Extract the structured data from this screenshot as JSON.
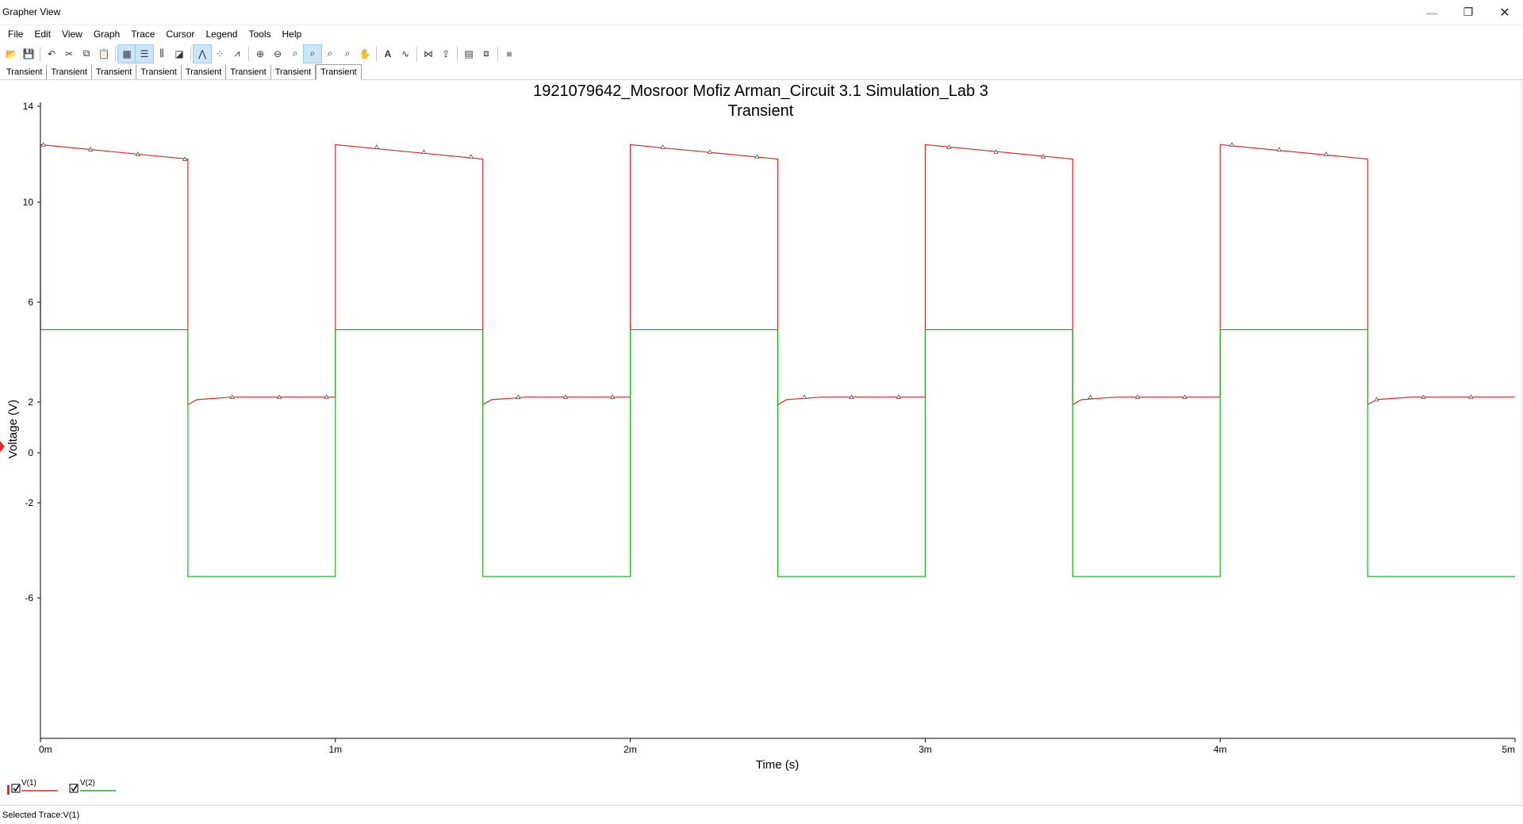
{
  "window": {
    "title": "Grapher View",
    "minimize_glyph": "—",
    "restore_glyph": "❐",
    "close_glyph": "✕"
  },
  "menu": [
    "File",
    "Edit",
    "View",
    "Graph",
    "Trace",
    "Cursor",
    "Legend",
    "Tools",
    "Help"
  ],
  "toolbar": {
    "icons": [
      "open-icon",
      "save-icon",
      "|",
      "undo-icon",
      "cut-icon",
      "copy-icon",
      "paste-icon",
      "|",
      "grid-icon",
      "legend-icon",
      "cursors-icon",
      "reverse-colors-icon",
      "|",
      "show-trace-icon",
      "show-points-icon",
      "show-lines-points-icon",
      "|",
      "zoom-in-icon",
      "zoom-out-icon",
      "zoom-area-icon",
      "zoom-x-icon",
      "zoom-y-icon",
      "zoom-full-icon",
      "pan-icon",
      "|",
      "text-icon",
      "compare-icon",
      "|",
      "diff-icon",
      "export-icon",
      "|",
      "properties-icon",
      "overlay-icon",
      "|",
      "stop-icon"
    ],
    "active": [
      "grid-icon",
      "legend-icon",
      "show-trace-icon",
      "zoom-x-icon"
    ]
  },
  "tabs": [
    {
      "label": "Transient",
      "active": false
    },
    {
      "label": "Transient",
      "active": false
    },
    {
      "label": "Transient",
      "active": false
    },
    {
      "label": "Transient",
      "active": false
    },
    {
      "label": "Transient",
      "active": false
    },
    {
      "label": "Transient",
      "active": false
    },
    {
      "label": "Transient",
      "active": false
    },
    {
      "label": "Transient",
      "active": true
    }
  ],
  "colors": {
    "v1": "#e8262b",
    "v2": "#1ab526"
  },
  "status": {
    "text": "Selected Trace:V(1)"
  },
  "chart_data": {
    "type": "line",
    "title": "1921079642_Mosroor Mofiz Arman_Circuit 3.1 Simulation_Lab 3",
    "subtitle": "Transient",
    "xlabel": "Time (s)",
    "ylabel": "Voltage (V)",
    "xlim": [
      0,
      0.005
    ],
    "ylim": [
      -6,
      14
    ],
    "x_ticks": [
      {
        "value": 0,
        "label": "0m"
      },
      {
        "value": 0.001,
        "label": "1m"
      },
      {
        "value": 0.002,
        "label": "2m"
      },
      {
        "value": 0.003,
        "label": "3m"
      },
      {
        "value": 0.004,
        "label": "4m"
      },
      {
        "value": 0.005,
        "label": "5m"
      }
    ],
    "y_ticks": [
      {
        "value": 14,
        "label": "14"
      },
      {
        "value": 10,
        "label": "10"
      },
      {
        "value": 6,
        "label": "6"
      },
      {
        "value": 2,
        "label": "2"
      },
      {
        "value": 0,
        "label": "0"
      },
      {
        "value": -2,
        "label": "-2"
      },
      {
        "value": -6,
        "label": "-6"
      }
    ],
    "legend": "bottom-left",
    "series": [
      {
        "name": "V(1)",
        "color": "#e8262b",
        "checked": true,
        "points": [
          [
            0,
            4.9
          ],
          [
            0,
            12.4
          ],
          [
            0.0005,
            11.8
          ],
          [
            0.0005,
            1.9
          ],
          [
            0.00053,
            2.1
          ],
          [
            0.00065,
            2.2
          ],
          [
            0.001,
            2.2
          ],
          [
            0.001,
            12.4
          ],
          [
            0.0015,
            11.8
          ],
          [
            0.0015,
            1.9
          ],
          [
            0.00153,
            2.1
          ],
          [
            0.00165,
            2.2
          ],
          [
            0.002,
            2.2
          ],
          [
            0.002,
            12.4
          ],
          [
            0.0025,
            11.8
          ],
          [
            0.0025,
            1.9
          ],
          [
            0.00253,
            2.1
          ],
          [
            0.00265,
            2.2
          ],
          [
            0.003,
            2.2
          ],
          [
            0.003,
            12.4
          ],
          [
            0.0035,
            11.8
          ],
          [
            0.0035,
            1.9
          ],
          [
            0.00353,
            2.1
          ],
          [
            0.00365,
            2.2
          ],
          [
            0.004,
            2.2
          ],
          [
            0.004,
            12.4
          ],
          [
            0.0045,
            11.8
          ],
          [
            0.0045,
            1.9
          ],
          [
            0.00453,
            2.1
          ],
          [
            0.00465,
            2.2
          ],
          [
            0.005,
            2.2
          ]
        ],
        "markers": [
          [
            1e-05,
            12.4
          ],
          [
            0.00017,
            12.2
          ],
          [
            0.00033,
            12.0
          ],
          [
            0.00049,
            11.8
          ],
          [
            0.00065,
            2.2
          ],
          [
            0.00081,
            2.2
          ],
          [
            0.00097,
            2.2
          ],
          [
            0.00114,
            12.3
          ],
          [
            0.0013,
            12.1
          ],
          [
            0.00146,
            11.9
          ],
          [
            0.00162,
            2.2
          ],
          [
            0.00178,
            2.2
          ],
          [
            0.00194,
            2.2
          ],
          [
            0.00211,
            12.3
          ],
          [
            0.00227,
            12.1
          ],
          [
            0.00243,
            11.9
          ],
          [
            0.00259,
            2.2
          ],
          [
            0.00275,
            2.2
          ],
          [
            0.00291,
            2.2
          ],
          [
            0.00308,
            12.3
          ],
          [
            0.00324,
            12.1
          ],
          [
            0.0034,
            11.9
          ],
          [
            0.00356,
            2.2
          ],
          [
            0.00372,
            2.2
          ],
          [
            0.00388,
            2.2
          ],
          [
            0.00404,
            12.4
          ],
          [
            0.0042,
            12.2
          ],
          [
            0.00436,
            12.0
          ],
          [
            0.00453,
            2.1
          ],
          [
            0.00469,
            2.2
          ],
          [
            0.00485,
            2.2
          ]
        ]
      },
      {
        "name": "V(2)",
        "color": "#1ab526",
        "checked": true,
        "points": [
          [
            0,
            4.9
          ],
          [
            0.0005,
            4.9
          ],
          [
            0.0005,
            -5.1
          ],
          [
            0.001,
            -5.1
          ],
          [
            0.001,
            4.9
          ],
          [
            0.0015,
            4.9
          ],
          [
            0.0015,
            -5.1
          ],
          [
            0.002,
            -5.1
          ],
          [
            0.002,
            4.9
          ],
          [
            0.0025,
            4.9
          ],
          [
            0.0025,
            -5.1
          ],
          [
            0.003,
            -5.1
          ],
          [
            0.003,
            4.9
          ],
          [
            0.0035,
            4.9
          ],
          [
            0.0035,
            -5.1
          ],
          [
            0.004,
            -5.1
          ],
          [
            0.004,
            4.9
          ],
          [
            0.0045,
            4.9
          ],
          [
            0.0045,
            -5.1
          ],
          [
            0.005,
            -5.1
          ]
        ]
      }
    ]
  }
}
